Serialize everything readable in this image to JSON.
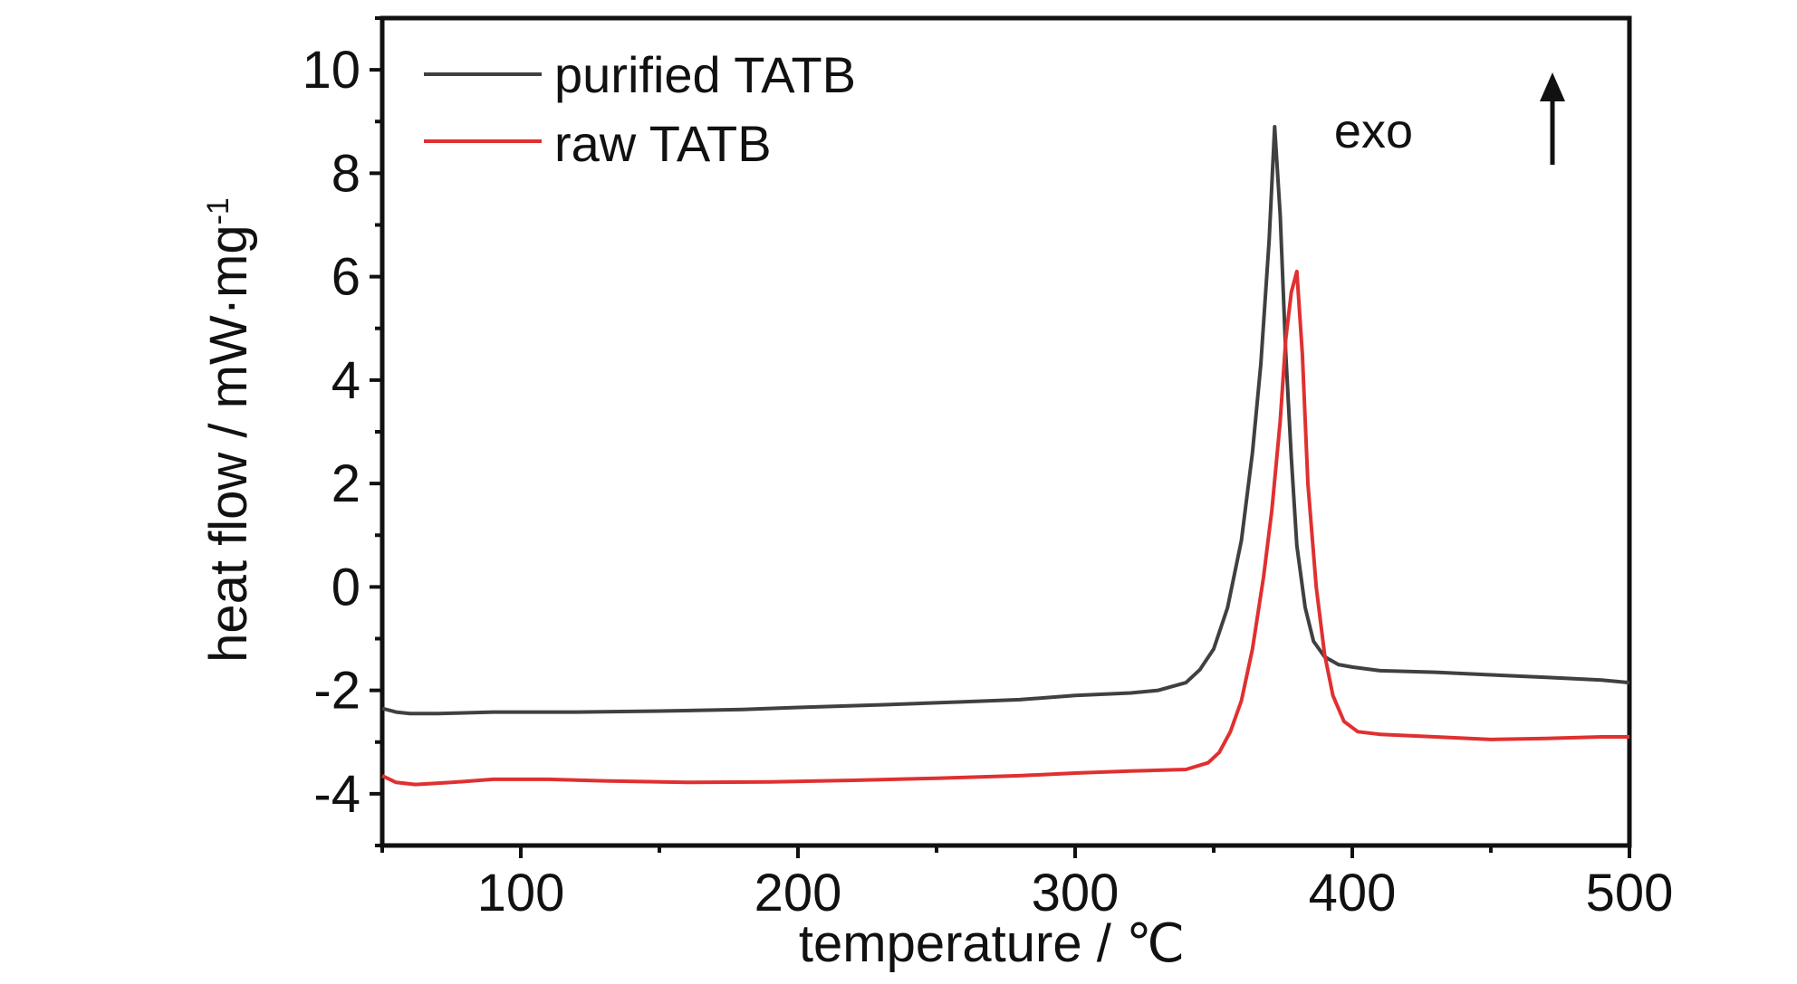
{
  "chart_data": {
    "type": "line",
    "xlabel": "temperature / ℃",
    "ylabel_main": "heat flow / mW·mg",
    "ylabel_sup": "-1",
    "xlim": [
      50,
      500
    ],
    "ylim": [
      -5,
      11
    ],
    "x_ticks": [
      100,
      200,
      300,
      400,
      500
    ],
    "y_ticks": [
      -4,
      -2,
      0,
      2,
      4,
      6,
      8,
      10
    ],
    "x_tick_labels": [
      "100",
      "200",
      "300",
      "400",
      "500"
    ],
    "y_tick_labels": [
      "-4",
      "-2",
      "0",
      "2",
      "4",
      "6",
      "8",
      "10"
    ],
    "grid": false,
    "legend_position": "top-left",
    "annotation": {
      "text": "exo",
      "arrow": "up"
    },
    "series": [
      {
        "name": "purified TATB",
        "color": "#404040",
        "points": [
          [
            50,
            -2.35
          ],
          [
            55,
            -2.42
          ],
          [
            60,
            -2.45
          ],
          [
            70,
            -2.45
          ],
          [
            90,
            -2.42
          ],
          [
            120,
            -2.42
          ],
          [
            150,
            -2.4
          ],
          [
            180,
            -2.37
          ],
          [
            200,
            -2.33
          ],
          [
            230,
            -2.28
          ],
          [
            260,
            -2.22
          ],
          [
            280,
            -2.18
          ],
          [
            300,
            -2.1
          ],
          [
            320,
            -2.05
          ],
          [
            330,
            -2.0
          ],
          [
            340,
            -1.85
          ],
          [
            345,
            -1.6
          ],
          [
            350,
            -1.2
          ],
          [
            355,
            -0.4
          ],
          [
            360,
            0.9
          ],
          [
            364,
            2.6
          ],
          [
            367,
            4.3
          ],
          [
            370,
            6.7
          ],
          [
            372,
            8.9
          ],
          [
            374,
            7.2
          ],
          [
            376,
            4.5
          ],
          [
            378,
            2.5
          ],
          [
            380,
            0.8
          ],
          [
            383,
            -0.4
          ],
          [
            386,
            -1.05
          ],
          [
            390,
            -1.35
          ],
          [
            395,
            -1.5
          ],
          [
            400,
            -1.55
          ],
          [
            410,
            -1.62
          ],
          [
            430,
            -1.65
          ],
          [
            450,
            -1.7
          ],
          [
            470,
            -1.75
          ],
          [
            490,
            -1.8
          ],
          [
            500,
            -1.85
          ]
        ]
      },
      {
        "name": "raw TATB",
        "color": "#e03030",
        "points": [
          [
            50,
            -3.65
          ],
          [
            55,
            -3.78
          ],
          [
            62,
            -3.82
          ],
          [
            75,
            -3.78
          ],
          [
            90,
            -3.72
          ],
          [
            110,
            -3.72
          ],
          [
            130,
            -3.75
          ],
          [
            160,
            -3.78
          ],
          [
            190,
            -3.77
          ],
          [
            220,
            -3.74
          ],
          [
            250,
            -3.7
          ],
          [
            280,
            -3.65
          ],
          [
            300,
            -3.6
          ],
          [
            320,
            -3.56
          ],
          [
            340,
            -3.53
          ],
          [
            348,
            -3.4
          ],
          [
            352,
            -3.2
          ],
          [
            356,
            -2.8
          ],
          [
            360,
            -2.2
          ],
          [
            364,
            -1.2
          ],
          [
            368,
            0.2
          ],
          [
            371,
            1.5
          ],
          [
            374,
            3.2
          ],
          [
            376,
            4.8
          ],
          [
            378,
            5.7
          ],
          [
            380,
            6.1
          ],
          [
            382,
            4.5
          ],
          [
            384,
            2.0
          ],
          [
            387,
            0.0
          ],
          [
            390,
            -1.3
          ],
          [
            393,
            -2.1
          ],
          [
            397,
            -2.6
          ],
          [
            402,
            -2.8
          ],
          [
            410,
            -2.85
          ],
          [
            430,
            -2.9
          ],
          [
            450,
            -2.95
          ],
          [
            470,
            -2.93
          ],
          [
            490,
            -2.9
          ],
          [
            500,
            -2.9
          ]
        ]
      }
    ]
  }
}
